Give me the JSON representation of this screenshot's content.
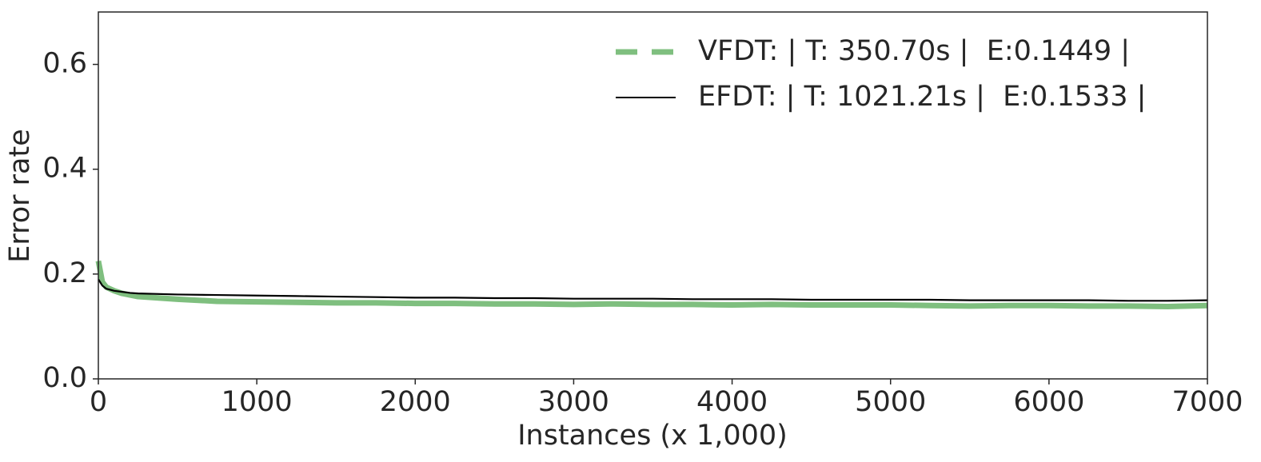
{
  "chart_data": {
    "type": "line",
    "xlabel": "Instances (x 1,000)",
    "ylabel": "Error rate",
    "x": [
      0,
      25,
      50,
      100,
      150,
      200,
      250,
      500,
      750,
      1000,
      1250,
      1500,
      1750,
      2000,
      2250,
      2500,
      2750,
      3000,
      3250,
      3500,
      3750,
      4000,
      4250,
      4500,
      4750,
      5000,
      5250,
      5500,
      5750,
      6000,
      6250,
      6500,
      6750,
      7000
    ],
    "series": [
      {
        "name": "VFDT: | T: 350.70s |  E:0.1449 |",
        "color": "#7fbf7f",
        "dash": true,
        "values": [
          0.225,
          0.185,
          0.175,
          0.168,
          0.163,
          0.16,
          0.157,
          0.152,
          0.148,
          0.147,
          0.146,
          0.145,
          0.145,
          0.144,
          0.144,
          0.143,
          0.143,
          0.142,
          0.143,
          0.142,
          0.142,
          0.141,
          0.142,
          0.141,
          0.141,
          0.141,
          0.14,
          0.139,
          0.14,
          0.14,
          0.139,
          0.139,
          0.138,
          0.14
        ]
      },
      {
        "name": "EFDT: | T: 1021.21s |  E:0.1533 |",
        "color": "#000000",
        "dash": false,
        "values": [
          0.19,
          0.178,
          0.172,
          0.168,
          0.166,
          0.164,
          0.163,
          0.161,
          0.16,
          0.159,
          0.158,
          0.157,
          0.156,
          0.155,
          0.155,
          0.154,
          0.154,
          0.153,
          0.153,
          0.153,
          0.152,
          0.152,
          0.152,
          0.151,
          0.151,
          0.151,
          0.151,
          0.15,
          0.15,
          0.15,
          0.15,
          0.149,
          0.149,
          0.15
        ]
      }
    ],
    "xlim": [
      0,
      7000
    ],
    "xticks": [
      0,
      1000,
      2000,
      3000,
      4000,
      5000,
      6000,
      7000
    ],
    "ylim": [
      0,
      0.7
    ],
    "yticks": [
      {
        "value": 0,
        "label": "0.0"
      },
      0.2,
      0.4,
      0.6
    ],
    "legend": "upper right",
    "grid": false
  }
}
